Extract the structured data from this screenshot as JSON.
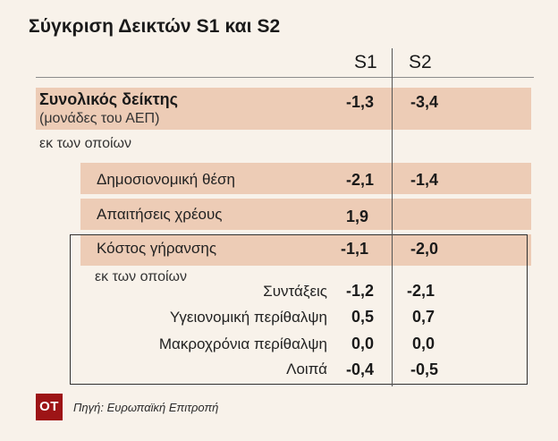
{
  "title": "Σύγκριση Δεικτών S1 και S2",
  "columns": {
    "s1": "S1",
    "s2": "S2"
  },
  "rows": {
    "total": {
      "label": "Συνολικός δείκτης",
      "sublabel": "(μονάδες του ΑΕΠ)",
      "s1": "-1,3",
      "s2": "-3,4"
    },
    "of_which_1": "εκ των οποίων",
    "fiscal": {
      "label": "Δημοσιονομική θέση",
      "s1": "-2,1",
      "s2": "-1,4"
    },
    "debt": {
      "label": "Απαιτήσεις χρέους",
      "s1": "1,9",
      "s2": ""
    },
    "ageing": {
      "label": "Κόστος γήρανσης",
      "s1": "-1,1",
      "s2": "-2,0"
    },
    "of_which_2": "εκ των οποίων",
    "pensions": {
      "label": "Συντάξεις",
      "s1": "-1,2",
      "s2": "-2,1"
    },
    "health": {
      "label": "Υγειονομική περίθαλψη",
      "s1": "0,5",
      "s2": "0,7"
    },
    "ltc": {
      "label": "Μακροχρόνια περίθαλψη",
      "s1": "0,0",
      "s2": "0,0"
    },
    "other": {
      "label": "Λοιπά",
      "s1": "-0,4",
      "s2": "-0,5"
    }
  },
  "footer": {
    "logo": "OT",
    "source": "Πηγή: Ευρωπαϊκή Επιτροπή"
  },
  "colors": {
    "background": "#f8f2ea",
    "band": "#ecc9b1",
    "logo": "#9d1416"
  }
}
